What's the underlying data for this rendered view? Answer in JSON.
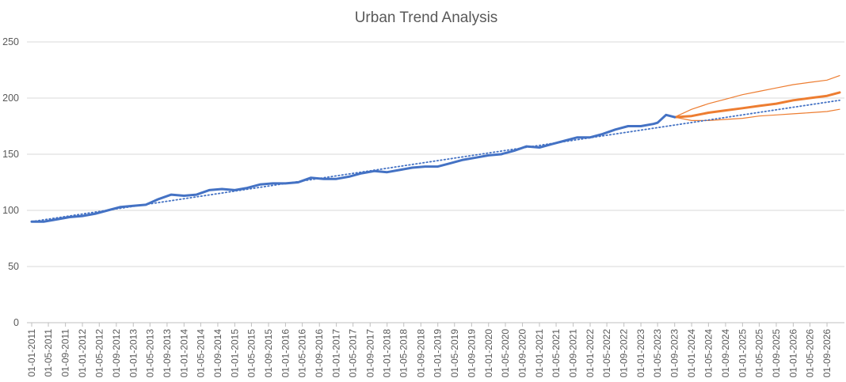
{
  "chart_data": {
    "type": "line",
    "title": "Urban Trend Analysis",
    "xlabel": "",
    "ylabel": "",
    "ylim": [
      0,
      250
    ],
    "yticks": [
      0,
      50,
      100,
      150,
      200,
      250
    ],
    "grid": true,
    "legend": "none",
    "x_range": [
      "01-01-2011",
      "01-12-2026"
    ],
    "xtick_labels": [
      "01-01-2011",
      "01-05-2011",
      "01-09-2011",
      "01-01-2012",
      "01-05-2012",
      "01-09-2012",
      "01-01-2013",
      "01-05-2013",
      "01-09-2013",
      "01-01-2014",
      "01-05-2014",
      "01-09-2014",
      "01-01-2015",
      "01-05-2015",
      "01-09-2015",
      "01-01-2016",
      "01-05-2016",
      "01-09-2016",
      "01-01-2017",
      "01-05-2017",
      "01-09-2017",
      "01-01-2018",
      "01-05-2018",
      "01-09-2018",
      "01-01-2019",
      "01-05-2019",
      "01-09-2019",
      "01-01-2020",
      "01-05-2020",
      "01-09-2020",
      "01-01-2021",
      "01-05-2021",
      "01-09-2021",
      "01-01-2022",
      "01-05-2022",
      "01-09-2022",
      "01-01-2023",
      "01-05-2023",
      "01-09-2023",
      "01-01-2024",
      "01-05-2024",
      "01-09-2024",
      "01-01-2025",
      "01-05-2025",
      "01-09-2025",
      "01-01-2026",
      "01-05-2026",
      "01-09-2026"
    ],
    "series": [
      {
        "role": "actual",
        "color": "#4472c4",
        "points": [
          [
            "01-01-2011",
            90
          ],
          [
            "01-04-2011",
            90
          ],
          [
            "01-07-2011",
            92
          ],
          [
            "01-10-2011",
            94
          ],
          [
            "01-01-2012",
            95
          ],
          [
            "01-04-2012",
            97
          ],
          [
            "01-07-2012",
            100
          ],
          [
            "01-10-2012",
            103
          ],
          [
            "01-01-2013",
            104
          ],
          [
            "01-04-2013",
            105
          ],
          [
            "01-07-2013",
            110
          ],
          [
            "01-10-2013",
            114
          ],
          [
            "01-01-2014",
            113
          ],
          [
            "01-04-2014",
            114
          ],
          [
            "01-07-2014",
            118
          ],
          [
            "01-10-2014",
            119
          ],
          [
            "01-01-2015",
            118
          ],
          [
            "01-04-2015",
            120
          ],
          [
            "01-07-2015",
            123
          ],
          [
            "01-10-2015",
            124
          ],
          [
            "01-01-2016",
            124
          ],
          [
            "01-04-2016",
            125
          ],
          [
            "01-07-2016",
            129
          ],
          [
            "01-10-2016",
            128
          ],
          [
            "01-01-2017",
            128
          ],
          [
            "01-04-2017",
            130
          ],
          [
            "01-07-2017",
            133
          ],
          [
            "01-10-2017",
            135
          ],
          [
            "01-01-2018",
            134
          ],
          [
            "01-04-2018",
            136
          ],
          [
            "01-07-2018",
            138
          ],
          [
            "01-10-2018",
            139
          ],
          [
            "01-01-2019",
            139
          ],
          [
            "01-04-2019",
            142
          ],
          [
            "01-07-2019",
            145
          ],
          [
            "01-10-2019",
            147
          ],
          [
            "01-01-2020",
            149
          ],
          [
            "01-04-2020",
            150
          ],
          [
            "01-07-2020",
            153
          ],
          [
            "01-10-2020",
            157
          ],
          [
            "01-01-2021",
            156
          ],
          [
            "01-04-2021",
            159
          ],
          [
            "01-07-2021",
            162
          ],
          [
            "01-10-2021",
            165
          ],
          [
            "01-01-2022",
            165
          ],
          [
            "01-04-2022",
            168
          ],
          [
            "01-07-2022",
            172
          ],
          [
            "01-10-2022",
            175
          ],
          [
            "01-01-2023",
            175
          ],
          [
            "01-04-2023",
            177
          ],
          [
            "01-05-2023",
            178
          ],
          [
            "01-07-2023",
            185
          ],
          [
            "01-09-2023",
            183
          ]
        ]
      },
      {
        "role": "forecast",
        "color": "#ed7d31",
        "points": [
          [
            "01-09-2023",
            183
          ],
          [
            "01-01-2024",
            184
          ],
          [
            "01-05-2024",
            187
          ],
          [
            "01-09-2024",
            189
          ],
          [
            "01-01-2025",
            191
          ],
          [
            "01-05-2025",
            193
          ],
          [
            "01-09-2025",
            195
          ],
          [
            "01-01-2026",
            198
          ],
          [
            "01-05-2026",
            200
          ],
          [
            "01-09-2026",
            202
          ],
          [
            "01-12-2026",
            205
          ]
        ]
      },
      {
        "role": "upper-bound",
        "color": "#ed7d31",
        "points": [
          [
            "01-09-2023",
            183
          ],
          [
            "01-01-2024",
            190
          ],
          [
            "01-05-2024",
            195
          ],
          [
            "01-09-2024",
            199
          ],
          [
            "01-01-2025",
            203
          ],
          [
            "01-05-2025",
            206
          ],
          [
            "01-09-2025",
            209
          ],
          [
            "01-01-2026",
            212
          ],
          [
            "01-05-2026",
            214
          ],
          [
            "01-09-2026",
            216
          ],
          [
            "01-12-2026",
            220
          ]
        ]
      },
      {
        "role": "lower-bound",
        "color": "#ed7d31",
        "points": [
          [
            "01-09-2023",
            183
          ],
          [
            "01-01-2024",
            180
          ],
          [
            "01-05-2024",
            180
          ],
          [
            "01-09-2024",
            181
          ],
          [
            "01-01-2025",
            182
          ],
          [
            "01-05-2025",
            184
          ],
          [
            "01-09-2025",
            185
          ],
          [
            "01-01-2026",
            186
          ],
          [
            "01-05-2026",
            187
          ],
          [
            "01-09-2026",
            188
          ],
          [
            "01-12-2026",
            190
          ]
        ]
      },
      {
        "role": "trendline",
        "color": "#4472c4",
        "style": "dotted",
        "points": [
          [
            "01-01-2011",
            90
          ],
          [
            "01-12-2026",
            198
          ]
        ]
      }
    ]
  }
}
